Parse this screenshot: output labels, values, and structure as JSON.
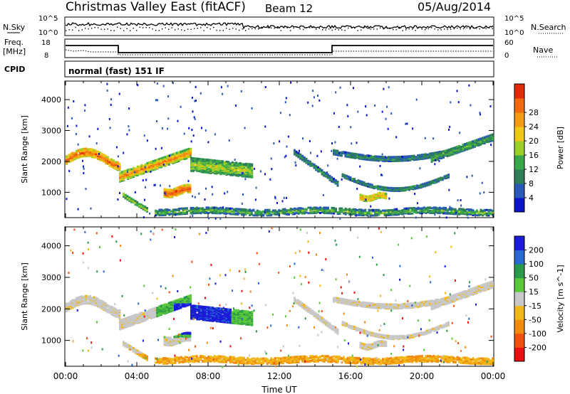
{
  "header": {
    "title": "Christmas Valley East (fitACF)",
    "beam": "Beam 12",
    "date": "05/Aug/2014"
  },
  "strips": {
    "nsky_label": "N.Sky",
    "nsearch_label": "N.Search",
    "nsky_ticks": [
      "10^5",
      "10^0"
    ],
    "nsky_ticks_right": [
      "10^5",
      "10^0"
    ],
    "freq_label_1": "Freq.",
    "freq_label_2": "[MHz]",
    "freq_ticks": [
      "18",
      "8"
    ],
    "nave_label": "Nave",
    "nave_ticks": [
      "60",
      "0"
    ],
    "cpid_label": "CPID",
    "cpid_text": "normal (fast) 151 IF"
  },
  "chart_data": [
    {
      "type": "heatmap",
      "ylabel": "Slant Range [km]",
      "xlabel": "Time UT",
      "x_ticks": [
        "00:00",
        "04:00",
        "08:00",
        "12:00",
        "16:00",
        "20:00",
        "00:00"
      ],
      "x_range_hours": [
        0,
        24
      ],
      "y_ticks": [
        1000,
        2000,
        3000,
        4000
      ],
      "ylim": [
        180,
        4600
      ],
      "colorbar": {
        "label": "Power [dB]",
        "ticks": [
          "4",
          "8",
          "12",
          "16",
          "20",
          "24",
          "28"
        ],
        "colors": [
          "#0a14c8",
          "#2a5ab8",
          "#2e7e5a",
          "#3aa84a",
          "#9ccf2a",
          "#f0c818",
          "#f59a14",
          "#f06a10",
          "#e02a0a"
        ]
      }
    },
    {
      "type": "heatmap",
      "ylabel": "Slant Range [km]",
      "xlabel": "Time UT",
      "x_ticks": [
        "00:00",
        "04:00",
        "08:00",
        "12:00",
        "16:00",
        "20:00",
        "00:00"
      ],
      "x_range_hours": [
        0,
        24
      ],
      "y_ticks": [
        1000,
        2000,
        3000,
        4000
      ],
      "ylim": [
        180,
        4600
      ],
      "colorbar": {
        "label": "Velocity [m s^-1]",
        "ticks": [
          "200",
          "100",
          "50",
          "15",
          "-15",
          "-50",
          "-100",
          "-200"
        ],
        "colors": [
          "#1a1ad8",
          "#2a6ad0",
          "#2a9a4a",
          "#5ac83a",
          "#c8c8c8",
          "#f0b818",
          "#f08a10",
          "#f05010",
          "#e81010"
        ]
      }
    }
  ],
  "colors": {
    "power_high": "#e02a0a",
    "power_low": "#0a14c8",
    "velocity_pos": "#1a1ad8",
    "velocity_neg": "#e81010",
    "velocity_zero": "#c8c8c8"
  }
}
